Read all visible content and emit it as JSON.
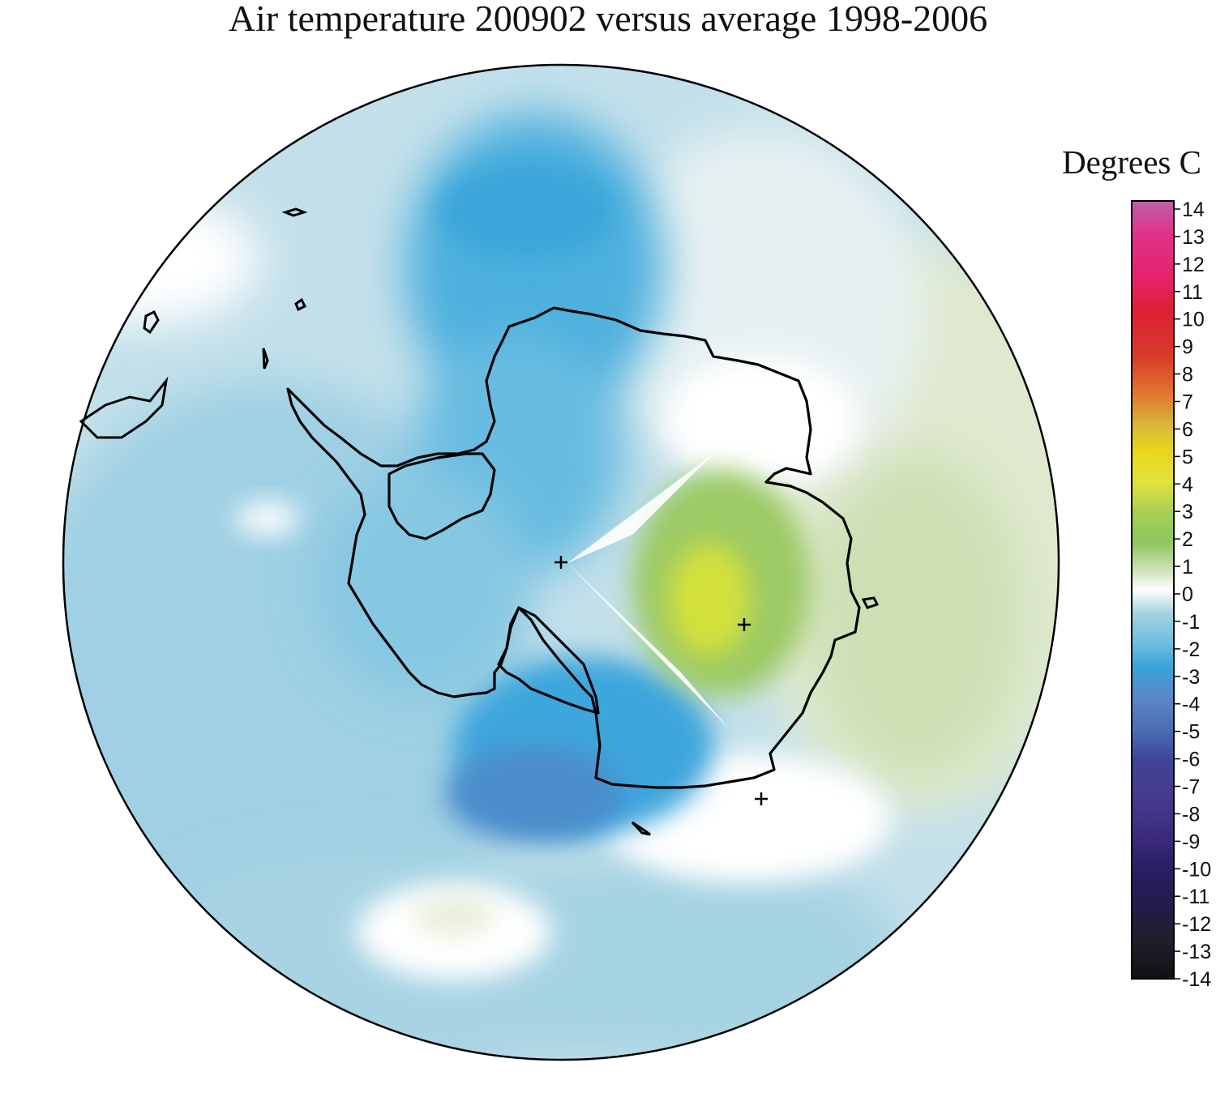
{
  "title": "Air temperature 200902 versus average 1998-2006",
  "legend": {
    "title": "Degrees C",
    "ticks": [
      "14",
      "13",
      "12",
      "11",
      "10",
      "9",
      "8",
      "7",
      "6",
      "5",
      "4",
      "3",
      "2",
      "1",
      "0",
      "-1",
      "-2",
      "-3",
      "-4",
      "-5",
      "-6",
      "-7",
      "-8",
      "-9",
      "-10",
      "-11",
      "-12",
      "-13",
      "-14"
    ],
    "colors": [
      "#b963a8",
      "#e0338a",
      "#e5226a",
      "#dd2035",
      "#d83a2a",
      "#dd5a28",
      "#e07a2f",
      "#d99a3a",
      "#d9b83b",
      "#e9d51b",
      "#e3e33a",
      "#b6d34e",
      "#8fc660",
      "#c9deb0",
      "#ffffff",
      "#a6d1e0",
      "#6cbde0",
      "#38a3da",
      "#5a86c6",
      "#4a6db3",
      "#3c5aa2",
      "#3f4596",
      "#46398d",
      "#3b2a7a",
      "#2a1d62",
      "#231b48",
      "#1f1f2c",
      "#1a1a1a",
      "#111111"
    ]
  },
  "markers": [
    "+",
    "+",
    "+"
  ]
}
